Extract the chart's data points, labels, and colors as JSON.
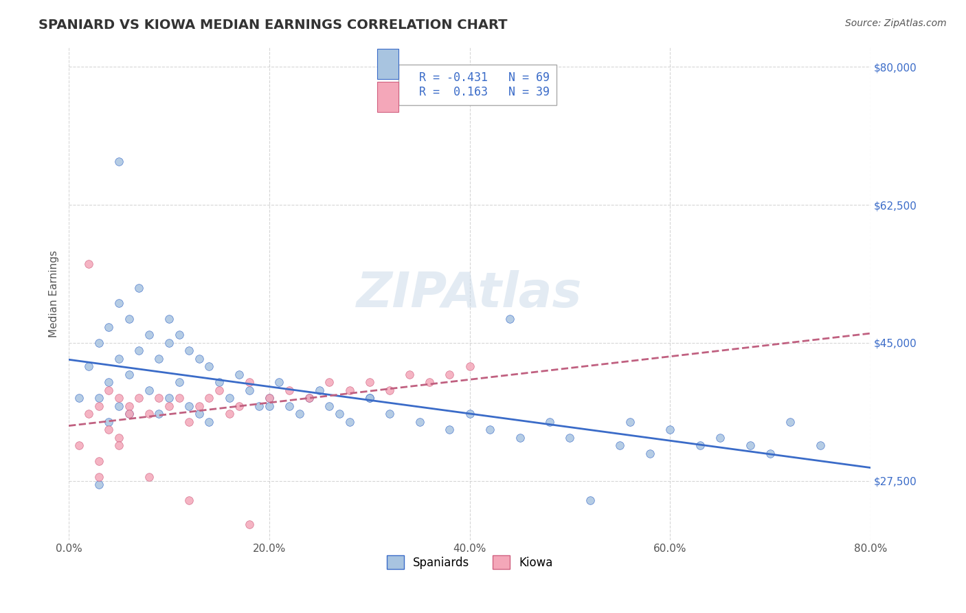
{
  "title": "SPANIARD VS KIOWA MEDIAN EARNINGS CORRELATION CHART",
  "source": "Source: ZipAtlas.com",
  "xlabel": "",
  "ylabel": "Median Earnings",
  "xlim": [
    0.0,
    80.0
  ],
  "ylim": [
    20000,
    82500
  ],
  "yticks": [
    27500,
    45000,
    62500,
    80000
  ],
  "ytick_labels": [
    "$27,500",
    "$45,000",
    "$62,500",
    "$80,000"
  ],
  "xticks": [
    0.0,
    20.0,
    40.0,
    60.0,
    80.0
  ],
  "xtick_labels": [
    "0.0%",
    "20.0%",
    "40.0%",
    "60.0%",
    "80.0%"
  ],
  "legend_r1": "R = -0.431",
  "legend_n1": "N = 69",
  "legend_r2": "R =  0.163",
  "legend_n2": "N = 39",
  "color_spaniards": "#a8c4e0",
  "color_kiowa": "#f4a7b9",
  "color_trend_spaniards": "#3a6bc8",
  "color_trend_kiowa": "#c06080",
  "watermark": "ZIPAtlas",
  "watermark_color": "#c8d8e8",
  "spaniards_x": [
    1,
    2,
    3,
    3,
    4,
    4,
    4,
    5,
    5,
    5,
    6,
    6,
    6,
    7,
    7,
    8,
    8,
    9,
    9,
    10,
    10,
    11,
    11,
    12,
    12,
    13,
    13,
    14,
    14,
    15,
    16,
    17,
    18,
    19,
    20,
    21,
    22,
    23,
    24,
    25,
    26,
    27,
    28,
    30,
    32,
    35,
    38,
    40,
    42,
    45,
    48,
    50,
    52,
    55,
    58,
    60,
    63,
    65,
    68,
    70,
    72,
    75,
    44,
    56,
    30,
    20,
    10,
    5,
    3
  ],
  "spaniards_y": [
    38000,
    42000,
    45000,
    38000,
    47000,
    40000,
    35000,
    50000,
    43000,
    37000,
    48000,
    41000,
    36000,
    52000,
    44000,
    46000,
    39000,
    43000,
    36000,
    45000,
    38000,
    46000,
    40000,
    44000,
    37000,
    43000,
    36000,
    42000,
    35000,
    40000,
    38000,
    41000,
    39000,
    37000,
    38000,
    40000,
    37000,
    36000,
    38000,
    39000,
    37000,
    36000,
    35000,
    38000,
    36000,
    35000,
    34000,
    36000,
    34000,
    33000,
    35000,
    33000,
    25000,
    32000,
    31000,
    34000,
    32000,
    33000,
    32000,
    31000,
    35000,
    32000,
    48000,
    35000,
    38000,
    37000,
    48000,
    68000,
    27000
  ],
  "kiowa_x": [
    1,
    2,
    2,
    3,
    3,
    4,
    4,
    5,
    5,
    6,
    6,
    7,
    8,
    9,
    10,
    11,
    12,
    13,
    14,
    15,
    16,
    17,
    18,
    20,
    22,
    24,
    26,
    28,
    30,
    32,
    34,
    36,
    38,
    40,
    3,
    5,
    8,
    12,
    18
  ],
  "kiowa_y": [
    32000,
    55000,
    36000,
    37000,
    30000,
    39000,
    34000,
    38000,
    33000,
    37000,
    36000,
    38000,
    36000,
    38000,
    37000,
    38000,
    35000,
    37000,
    38000,
    39000,
    36000,
    37000,
    40000,
    38000,
    39000,
    38000,
    40000,
    39000,
    40000,
    39000,
    41000,
    40000,
    41000,
    42000,
    28000,
    32000,
    28000,
    25000,
    22000
  ]
}
